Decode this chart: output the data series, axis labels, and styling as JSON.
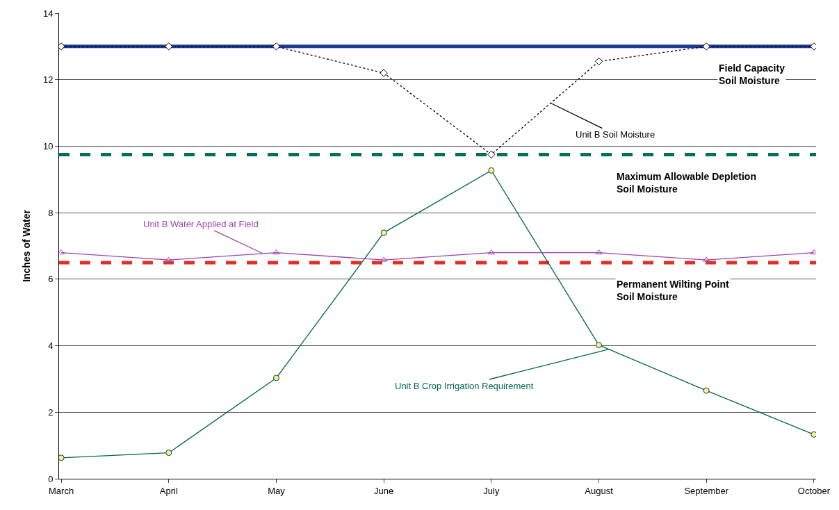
{
  "chart_data": {
    "type": "line",
    "ylabel": "Inches of Water",
    "categories": [
      "March",
      "April",
      "May",
      "June",
      "July",
      "August",
      "September",
      "October"
    ],
    "series": [
      {
        "name": "Unit B Soil Moisture",
        "color": "#000000",
        "marker": "diamond",
        "line_style": "dotted",
        "values": [
          13,
          13,
          13,
          12.2,
          9.75,
          12.55,
          13,
          13
        ]
      },
      {
        "name": "Unit B Crop Irrigation Requirement",
        "color": "#00664f",
        "marker": "circle",
        "line_style": "solid",
        "values": [
          0.63,
          0.78,
          3.03,
          7.4,
          9.27,
          4.02,
          2.65,
          1.33
        ]
      },
      {
        "name": "Unit B Water Applied at Field",
        "color": "#a040b0",
        "marker": "triangle",
        "line_style": "solid",
        "values": [
          6.8,
          6.58,
          6.8,
          6.58,
          6.8,
          6.8,
          6.58,
          6.8
        ]
      }
    ],
    "ref_lines": [
      {
        "axis": "y",
        "value": 13,
        "label": "Field Capacity Soil Moisture",
        "color": "#1f3a93",
        "line_style": "solid"
      },
      {
        "axis": "y",
        "value": 9.75,
        "label": "Maximum Allowable Depletion Soil Moisture",
        "color": "#00705a",
        "line_style": "dashed"
      },
      {
        "axis": "y",
        "value": 6.5,
        "label": "Permanent Wilting Point Soil Moisture",
        "color": "#e03025",
        "line_style": "dashed"
      }
    ],
    "ylim": [
      0,
      14
    ],
    "yticks": [
      0,
      2,
      4,
      6,
      8,
      10,
      12,
      14
    ],
    "grid": "y",
    "legend": false
  }
}
